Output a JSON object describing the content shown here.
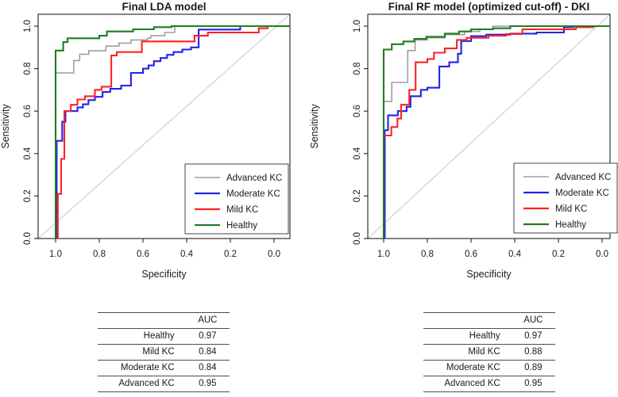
{
  "figure": {
    "background": "#ffffff",
    "axis_color": "#333333",
    "diagonal_color": "#c8c8c8",
    "text_color": "#1a1a1a"
  },
  "chart_data": [
    {
      "type": "line",
      "subtype": "roc-step-curves",
      "title": "Final LDA model",
      "xlabel": "Specificity",
      "ylabel": "Sensitivity",
      "x_ticks": [
        "1.0",
        "0.8",
        "0.6",
        "0.4",
        "0.2",
        "0.0"
      ],
      "y_ticks": [
        "0.0",
        "0.2",
        "0.4",
        "0.6",
        "0.8",
        "1.0"
      ],
      "xlim": [
        1.0,
        0.0
      ],
      "ylim": [
        0.0,
        1.0
      ],
      "x_axis_reversed": true,
      "grid": false,
      "diagonal_reference_line": true,
      "legend_position": "bottom-right",
      "series": [
        {
          "name": "Advanced KC",
          "color": "#9e9e9e",
          "points": [
            [
              1.0,
              0
            ],
            [
              1.0,
              0.78
            ],
            [
              0.917,
              0.78
            ],
            [
              0.917,
              0.838
            ],
            [
              0.89,
              0.838
            ],
            [
              0.89,
              0.868
            ],
            [
              0.848,
              0.868
            ],
            [
              0.848,
              0.884
            ],
            [
              0.77,
              0.884
            ],
            [
              0.77,
              0.906
            ],
            [
              0.71,
              0.906
            ],
            [
              0.71,
              0.92
            ],
            [
              0.655,
              0.92
            ],
            [
              0.655,
              0.935
            ],
            [
              0.58,
              0.935
            ],
            [
              0.58,
              0.943
            ],
            [
              0.564,
              0.943
            ],
            [
              0.564,
              0.955
            ],
            [
              0.5,
              0.955
            ],
            [
              0.5,
              0.97
            ],
            [
              0.455,
              0.97
            ],
            [
              0.455,
              1.0
            ],
            [
              0,
              1.0
            ]
          ]
        },
        {
          "name": "Moderate KC",
          "color": "#2222ee",
          "points": [
            [
              0.995,
              0
            ],
            [
              0.995,
              0.46
            ],
            [
              0.97,
              0.46
            ],
            [
              0.97,
              0.55
            ],
            [
              0.955,
              0.55
            ],
            [
              0.955,
              0.6
            ],
            [
              0.9,
              0.6
            ],
            [
              0.9,
              0.617
            ],
            [
              0.875,
              0.617
            ],
            [
              0.875,
              0.632
            ],
            [
              0.85,
              0.632
            ],
            [
              0.85,
              0.652
            ],
            [
              0.82,
              0.652
            ],
            [
              0.82,
              0.667
            ],
            [
              0.785,
              0.667
            ],
            [
              0.785,
              0.69
            ],
            [
              0.75,
              0.69
            ],
            [
              0.75,
              0.705
            ],
            [
              0.7,
              0.705
            ],
            [
              0.7,
              0.72
            ],
            [
              0.655,
              0.72
            ],
            [
              0.655,
              0.78
            ],
            [
              0.6,
              0.78
            ],
            [
              0.6,
              0.8
            ],
            [
              0.575,
              0.8
            ],
            [
              0.575,
              0.815
            ],
            [
              0.55,
              0.815
            ],
            [
              0.55,
              0.835
            ],
            [
              0.52,
              0.835
            ],
            [
              0.52,
              0.85
            ],
            [
              0.49,
              0.85
            ],
            [
              0.49,
              0.865
            ],
            [
              0.46,
              0.865
            ],
            [
              0.46,
              0.878
            ],
            [
              0.42,
              0.878
            ],
            [
              0.42,
              0.89
            ],
            [
              0.38,
              0.89
            ],
            [
              0.38,
              0.9
            ],
            [
              0.345,
              0.9
            ],
            [
              0.345,
              0.984
            ],
            [
              0.155,
              0.984
            ],
            [
              0.155,
              1.0
            ],
            [
              0,
              1.0
            ]
          ]
        },
        {
          "name": "Mild KC",
          "color": "#ff2222",
          "points": [
            [
              0.99,
              0
            ],
            [
              0.99,
              0.21
            ],
            [
              0.975,
              0.21
            ],
            [
              0.975,
              0.375
            ],
            [
              0.96,
              0.375
            ],
            [
              0.96,
              0.6
            ],
            [
              0.93,
              0.6
            ],
            [
              0.93,
              0.63
            ],
            [
              0.9,
              0.63
            ],
            [
              0.9,
              0.655
            ],
            [
              0.865,
              0.655
            ],
            [
              0.865,
              0.67
            ],
            [
              0.82,
              0.67
            ],
            [
              0.82,
              0.7
            ],
            [
              0.79,
              0.7
            ],
            [
              0.79,
              0.715
            ],
            [
              0.745,
              0.715
            ],
            [
              0.745,
              0.862
            ],
            [
              0.72,
              0.862
            ],
            [
              0.72,
              0.878
            ],
            [
              0.605,
              0.878
            ],
            [
              0.605,
              0.928
            ],
            [
              0.364,
              0.928
            ],
            [
              0.364,
              0.955
            ],
            [
              0.303,
              0.955
            ],
            [
              0.303,
              0.97
            ],
            [
              0.07,
              0.97
            ],
            [
              0.07,
              0.99
            ],
            [
              0.03,
              0.99
            ],
            [
              0.03,
              1.0
            ],
            [
              0,
              1.0
            ]
          ]
        },
        {
          "name": "Healthy",
          "color": "#1e7d1e",
          "points": [
            [
              1.0,
              0
            ],
            [
              1.0,
              0.885
            ],
            [
              0.965,
              0.885
            ],
            [
              0.965,
              0.925
            ],
            [
              0.945,
              0.925
            ],
            [
              0.945,
              0.943
            ],
            [
              0.8,
              0.943
            ],
            [
              0.8,
              0.955
            ],
            [
              0.765,
              0.955
            ],
            [
              0.765,
              0.975
            ],
            [
              0.645,
              0.975
            ],
            [
              0.645,
              0.985
            ],
            [
              0.55,
              0.985
            ],
            [
              0.55,
              0.995
            ],
            [
              0.47,
              0.995
            ],
            [
              0.47,
              1.0
            ],
            [
              0,
              1.0
            ]
          ]
        }
      ],
      "auc_table": {
        "header": [
          "",
          "AUC"
        ],
        "rows": [
          [
            "Healthy",
            "0.97"
          ],
          [
            "Mild KC",
            "0.84"
          ],
          [
            "Moderate KC",
            "0.84"
          ],
          [
            "Advanced KC",
            "0.95"
          ]
        ]
      }
    },
    {
      "type": "line",
      "subtype": "roc-step-curves",
      "title": "Final RF model (optimized cut-off) - DKI",
      "xlabel": "Specificity",
      "ylabel": "Sensitivity",
      "x_ticks": [
        "1.0",
        "0.8",
        "0.6",
        "0.4",
        "0.2",
        "0.0"
      ],
      "y_ticks": [
        "0.0",
        "0.2",
        "0.4",
        "0.6",
        "0.8",
        "1.0"
      ],
      "xlim": [
        1.0,
        0.0
      ],
      "ylim": [
        0.0,
        1.0
      ],
      "x_axis_reversed": true,
      "grid": false,
      "diagonal_reference_line": true,
      "legend_position": "bottom-right",
      "series": [
        {
          "name": "Advanced KC",
          "color": "#9e9e9e",
          "points": [
            [
              1.0,
              0
            ],
            [
              1.0,
              0.645
            ],
            [
              0.963,
              0.645
            ],
            [
              0.963,
              0.735
            ],
            [
              0.89,
              0.735
            ],
            [
              0.89,
              0.885
            ],
            [
              0.856,
              0.885
            ],
            [
              0.856,
              0.935
            ],
            [
              0.8,
              0.935
            ],
            [
              0.8,
              0.945
            ],
            [
              0.72,
              0.945
            ],
            [
              0.72,
              0.96
            ],
            [
              0.63,
              0.96
            ],
            [
              0.63,
              0.975
            ],
            [
              0.56,
              0.975
            ],
            [
              0.56,
              0.985
            ],
            [
              0.5,
              0.985
            ],
            [
              0.5,
              1.0
            ],
            [
              0,
              1.0
            ]
          ]
        },
        {
          "name": "Moderate KC",
          "color": "#2222ee",
          "points": [
            [
              0.995,
              0
            ],
            [
              0.995,
              0.51
            ],
            [
              0.98,
              0.51
            ],
            [
              0.98,
              0.58
            ],
            [
              0.935,
              0.58
            ],
            [
              0.935,
              0.6
            ],
            [
              0.895,
              0.6
            ],
            [
              0.895,
              0.62
            ],
            [
              0.877,
              0.62
            ],
            [
              0.877,
              0.67
            ],
            [
              0.83,
              0.67
            ],
            [
              0.83,
              0.7
            ],
            [
              0.8,
              0.7
            ],
            [
              0.8,
              0.71
            ],
            [
              0.745,
              0.71
            ],
            [
              0.745,
              0.81
            ],
            [
              0.7,
              0.81
            ],
            [
              0.7,
              0.83
            ],
            [
              0.66,
              0.83
            ],
            [
              0.66,
              0.87
            ],
            [
              0.645,
              0.87
            ],
            [
              0.645,
              0.93
            ],
            [
              0.6,
              0.93
            ],
            [
              0.6,
              0.953
            ],
            [
              0.53,
              0.953
            ],
            [
              0.53,
              0.96
            ],
            [
              0.42,
              0.96
            ],
            [
              0.42,
              0.965
            ],
            [
              0.3,
              0.965
            ],
            [
              0.3,
              0.97
            ],
            [
              0.175,
              0.97
            ],
            [
              0.175,
              0.995
            ],
            [
              0.13,
              0.995
            ],
            [
              0.13,
              1.0
            ],
            [
              0,
              1.0
            ]
          ]
        },
        {
          "name": "Mild KC",
          "color": "#ff2222",
          "points": [
            [
              1.0,
              0
            ],
            [
              1.0,
              0.485
            ],
            [
              0.965,
              0.485
            ],
            [
              0.965,
              0.525
            ],
            [
              0.937,
              0.525
            ],
            [
              0.937,
              0.565
            ],
            [
              0.92,
              0.565
            ],
            [
              0.92,
              0.63
            ],
            [
              0.883,
              0.63
            ],
            [
              0.883,
              0.7
            ],
            [
              0.854,
              0.7
            ],
            [
              0.854,
              0.83
            ],
            [
              0.8,
              0.83
            ],
            [
              0.8,
              0.845
            ],
            [
              0.77,
              0.845
            ],
            [
              0.77,
              0.875
            ],
            [
              0.72,
              0.875
            ],
            [
              0.72,
              0.895
            ],
            [
              0.665,
              0.895
            ],
            [
              0.665,
              0.935
            ],
            [
              0.62,
              0.935
            ],
            [
              0.62,
              0.945
            ],
            [
              0.52,
              0.945
            ],
            [
              0.52,
              0.955
            ],
            [
              0.44,
              0.955
            ],
            [
              0.44,
              0.963
            ],
            [
              0.365,
              0.963
            ],
            [
              0.365,
              0.985
            ],
            [
              0.12,
              0.985
            ],
            [
              0.12,
              0.995
            ],
            [
              0.04,
              0.995
            ],
            [
              0.04,
              1.0
            ],
            [
              0,
              1.0
            ]
          ]
        },
        {
          "name": "Healthy",
          "color": "#1e7d1e",
          "points": [
            [
              1.0,
              0
            ],
            [
              1.0,
              0.89
            ],
            [
              0.963,
              0.89
            ],
            [
              0.963,
              0.915
            ],
            [
              0.91,
              0.915
            ],
            [
              0.91,
              0.928
            ],
            [
              0.86,
              0.928
            ],
            [
              0.86,
              0.94
            ],
            [
              0.805,
              0.94
            ],
            [
              0.805,
              0.95
            ],
            [
              0.72,
              0.95
            ],
            [
              0.72,
              0.965
            ],
            [
              0.655,
              0.965
            ],
            [
              0.655,
              0.975
            ],
            [
              0.6,
              0.975
            ],
            [
              0.6,
              0.985
            ],
            [
              0.5,
              0.985
            ],
            [
              0.5,
              0.99
            ],
            [
              0.42,
              0.99
            ],
            [
              0.42,
              1.0
            ],
            [
              0,
              1.0
            ]
          ]
        }
      ],
      "auc_table": {
        "header": [
          "",
          "AUC"
        ],
        "rows": [
          [
            "Healthy",
            "0.97"
          ],
          [
            "Mild KC",
            "0.88"
          ],
          [
            "Moderate KC",
            "0.89"
          ],
          [
            "Advanced KC",
            "0.95"
          ]
        ]
      }
    }
  ]
}
